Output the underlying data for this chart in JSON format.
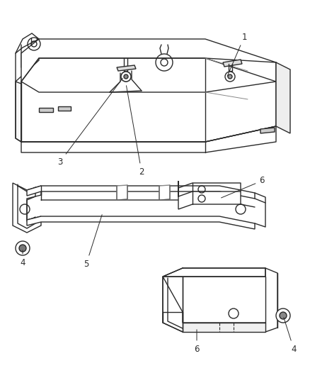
{
  "background_color": "#ffffff",
  "line_color": "#2a2a2a",
  "label_color": "#2a2a2a",
  "figsize": [
    4.38,
    5.33
  ],
  "dpi": 100,
  "lw": 1.0,
  "fs": 8.5
}
